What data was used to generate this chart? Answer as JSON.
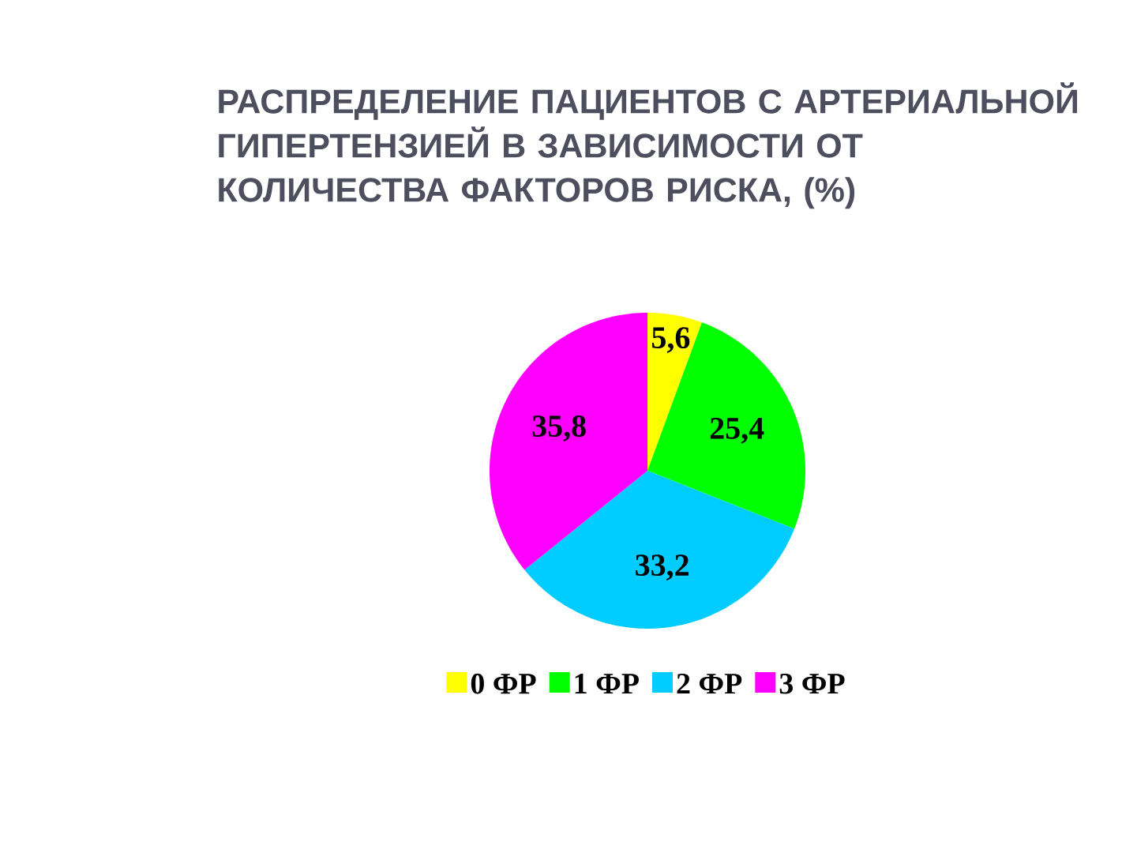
{
  "chart_data": {
    "type": "pie",
    "title": "РАСПРЕДЕЛЕНИЕ ПАЦИЕНТОВ С АРТЕРИАЛЬНОЙ ГИПЕРТЕНЗИЕЙ В ЗАВИСИМОСТИ ОТ КОЛИЧЕСТВА ФАКТОРОВ РИСКА, (%)",
    "categories": [
      "0 ФР",
      "1 ФР",
      "2 ФР",
      "3 ФР"
    ],
    "values": [
      5.6,
      25.4,
      33.2,
      35.8
    ],
    "value_labels": [
      "5,6",
      "25,4",
      "33,2",
      "35,8"
    ],
    "colors": [
      "#ffff00",
      "#00ff00",
      "#00ccff",
      "#ff00ff"
    ],
    "legend": "bottom"
  }
}
